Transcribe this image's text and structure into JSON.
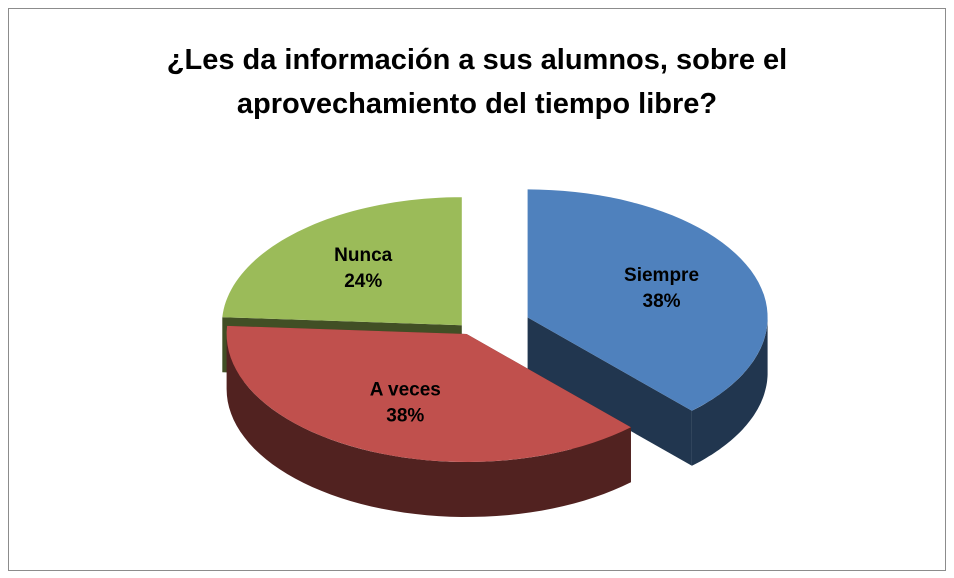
{
  "chart_data": {
    "type": "pie",
    "title": "¿Les da información a sus alumnos, sobre el aprovechamiento del tiempo libre?",
    "categories": [
      "Siempre",
      "A veces",
      "Nunca"
    ],
    "values": [
      38,
      38,
      24
    ],
    "value_labels": [
      "38%",
      "38%",
      "24%"
    ],
    "colors": [
      "#4f81bd",
      "#c0504d",
      "#9bbb59"
    ]
  }
}
